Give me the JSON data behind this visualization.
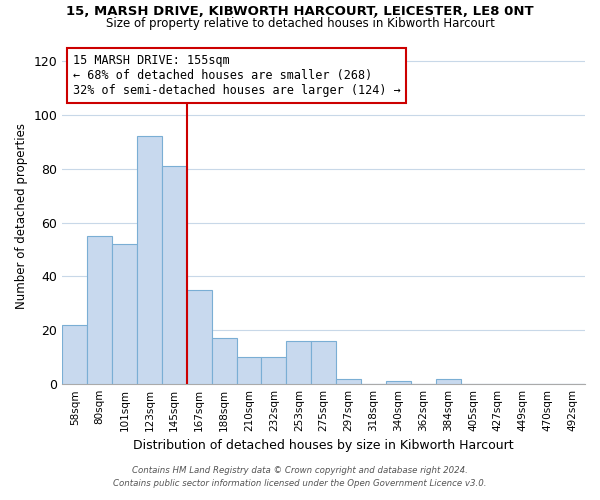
{
  "title1": "15, MARSH DRIVE, KIBWORTH HARCOURT, LEICESTER, LE8 0NT",
  "title2": "Size of property relative to detached houses in Kibworth Harcourt",
  "xlabel": "Distribution of detached houses by size in Kibworth Harcourt",
  "ylabel": "Number of detached properties",
  "bin_labels": [
    "58sqm",
    "80sqm",
    "101sqm",
    "123sqm",
    "145sqm",
    "167sqm",
    "188sqm",
    "210sqm",
    "232sqm",
    "253sqm",
    "275sqm",
    "297sqm",
    "318sqm",
    "340sqm",
    "362sqm",
    "384sqm",
    "405sqm",
    "427sqm",
    "449sqm",
    "470sqm",
    "492sqm"
  ],
  "bar_heights": [
    22,
    55,
    52,
    92,
    81,
    35,
    17,
    10,
    10,
    16,
    16,
    2,
    0,
    1,
    0,
    2,
    0,
    0,
    0,
    0,
    0
  ],
  "bar_color": "#c8d9ee",
  "bar_edge_color": "#7aaed4",
  "vline_x": 4.5,
  "vline_color": "#cc0000",
  "annotation_line1": "15 MARSH DRIVE: 155sqm",
  "annotation_line2": "← 68% of detached houses are smaller (268)",
  "annotation_line3": "32% of semi-detached houses are larger (124) →",
  "annotation_box_color": "#ffffff",
  "annotation_box_edge": "#cc0000",
  "ylim": [
    0,
    125
  ],
  "yticks": [
    0,
    20,
    40,
    60,
    80,
    100,
    120
  ],
  "footer_line1": "Contains HM Land Registry data © Crown copyright and database right 2024.",
  "footer_line2": "Contains public sector information licensed under the Open Government Licence v3.0.",
  "bg_color": "#ffffff",
  "grid_color": "#c8d8e8"
}
